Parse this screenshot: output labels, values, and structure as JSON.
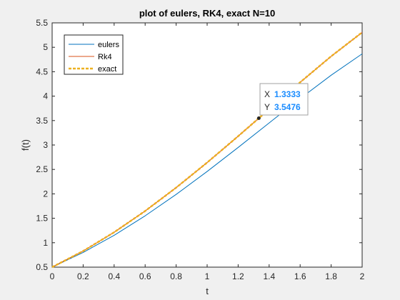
{
  "chart_data": {
    "type": "line",
    "title": "plot of eulers, RK4, exact N=10",
    "xlabel": "t",
    "ylabel": "f(t)",
    "xlim": [
      0,
      2
    ],
    "ylim": [
      0.5,
      5.5
    ],
    "xticks": [
      0,
      0.2,
      0.4,
      0.6,
      0.8,
      1,
      1.2,
      1.4,
      1.6,
      1.8,
      2
    ],
    "xtick_labels": [
      "0",
      "0.2",
      "0.4",
      "0.6",
      "0.8",
      "1",
      "1.2",
      "1.4",
      "1.6",
      "1.8",
      "2"
    ],
    "yticks": [
      0.5,
      1,
      1.5,
      2,
      2.5,
      3,
      3.5,
      4,
      4.5,
      5,
      5.5
    ],
    "ytick_labels": [
      "0.5",
      "1",
      "1.5",
      "2",
      "2.5",
      "3",
      "3.5",
      "4",
      "4.5",
      "5",
      "5.5"
    ],
    "grid": false,
    "legend_position": "top-left",
    "series": [
      {
        "name": "eulers",
        "color": "#0072bd",
        "style": "solid",
        "x": [
          0,
          0.2,
          0.4,
          0.6,
          0.8,
          1.0,
          1.2,
          1.4,
          1.6,
          1.8,
          2.0
        ],
        "y": [
          0.5,
          0.8,
          1.152,
          1.5504,
          1.9885,
          2.4582,
          2.9498,
          3.4518,
          3.9501,
          4.4282,
          4.8658
        ]
      },
      {
        "name": "Rk4",
        "color": "#d95319",
        "style": "solid",
        "x": [
          0,
          0.2,
          0.4,
          0.6,
          0.8,
          1.0,
          1.2,
          1.4,
          1.6,
          1.8,
          2.0
        ],
        "y": [
          0.5,
          0.8293,
          1.2141,
          1.6489,
          2.1272,
          2.6408,
          3.1799,
          3.7323,
          4.2834,
          4.8151,
          5.3054
        ]
      },
      {
        "name": "exact",
        "color": "#edb120",
        "style": "dashed",
        "x": [
          0,
          0.2,
          0.4,
          0.6,
          0.8,
          1.0,
          1.2,
          1.4,
          1.6,
          1.8,
          2.0
        ],
        "y": [
          0.5,
          0.8293,
          1.2141,
          1.6489,
          2.1272,
          2.6409,
          3.1799,
          3.7324,
          4.2835,
          4.8152,
          5.3055
        ]
      }
    ],
    "datatip": {
      "x_label": "X",
      "y_label": "Y",
      "x_value": "1.3333",
      "y_value": "3.5476",
      "x": 1.3333,
      "y": 3.5476
    }
  }
}
